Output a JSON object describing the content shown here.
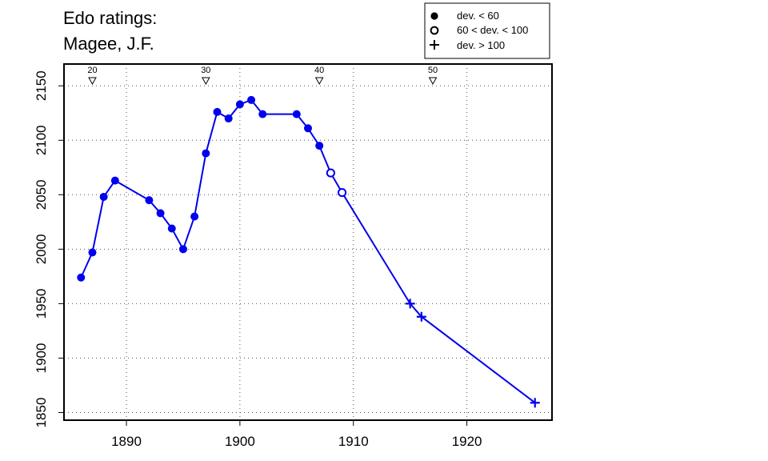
{
  "chart_data": {
    "type": "line",
    "title_lines": [
      "Edo ratings:",
      "Magee, J.F."
    ],
    "xlabel": "",
    "ylabel": "",
    "xlim": [
      1884.5,
      1927.5
    ],
    "ylim": [
      1843,
      2170
    ],
    "x_ticks": [
      1890,
      1900,
      1910,
      1920
    ],
    "y_ticks": [
      1850,
      1900,
      1950,
      2000,
      2050,
      2100,
      2150
    ],
    "grid": "dotted",
    "line_color": "#0000ee",
    "legend": {
      "placement": "top-right",
      "entries": [
        {
          "marker": "filled-circle",
          "label": "dev. < 60"
        },
        {
          "marker": "open-circle",
          "label": "60 < dev. < 100"
        },
        {
          "marker": "plus",
          "label": "dev. > 100"
        }
      ]
    },
    "game_markers": [
      {
        "x": 1887,
        "label": "20"
      },
      {
        "x": 1897,
        "label": "30"
      },
      {
        "x": 1907,
        "label": "40"
      },
      {
        "x": 1917,
        "label": "50"
      }
    ],
    "points": [
      {
        "x": 1886,
        "y": 1974,
        "marker": "filled-circle"
      },
      {
        "x": 1887,
        "y": 1997,
        "marker": "filled-circle"
      },
      {
        "x": 1888,
        "y": 2048,
        "marker": "filled-circle"
      },
      {
        "x": 1889,
        "y": 2063,
        "marker": "filled-circle"
      },
      {
        "x": 1892,
        "y": 2045,
        "marker": "filled-circle"
      },
      {
        "x": 1893,
        "y": 2033,
        "marker": "filled-circle"
      },
      {
        "x": 1894,
        "y": 2019,
        "marker": "filled-circle"
      },
      {
        "x": 1895,
        "y": 2000,
        "marker": "filled-circle"
      },
      {
        "x": 1896,
        "y": 2030,
        "marker": "filled-circle"
      },
      {
        "x": 1897,
        "y": 2088,
        "marker": "filled-circle"
      },
      {
        "x": 1898,
        "y": 2126,
        "marker": "filled-circle"
      },
      {
        "x": 1899,
        "y": 2120,
        "marker": "filled-circle"
      },
      {
        "x": 1900,
        "y": 2133,
        "marker": "filled-circle"
      },
      {
        "x": 1901,
        "y": 2137,
        "marker": "filled-circle"
      },
      {
        "x": 1902,
        "y": 2124,
        "marker": "filled-circle"
      },
      {
        "x": 1905,
        "y": 2124,
        "marker": "filled-circle"
      },
      {
        "x": 1906,
        "y": 2111,
        "marker": "filled-circle"
      },
      {
        "x": 1907,
        "y": 2095,
        "marker": "filled-circle"
      },
      {
        "x": 1908,
        "y": 2070,
        "marker": "open-circle"
      },
      {
        "x": 1909,
        "y": 2052,
        "marker": "open-circle"
      },
      {
        "x": 1915,
        "y": 1950,
        "marker": "plus"
      },
      {
        "x": 1916,
        "y": 1938,
        "marker": "plus"
      },
      {
        "x": 1926,
        "y": 1859,
        "marker": "plus"
      }
    ]
  }
}
